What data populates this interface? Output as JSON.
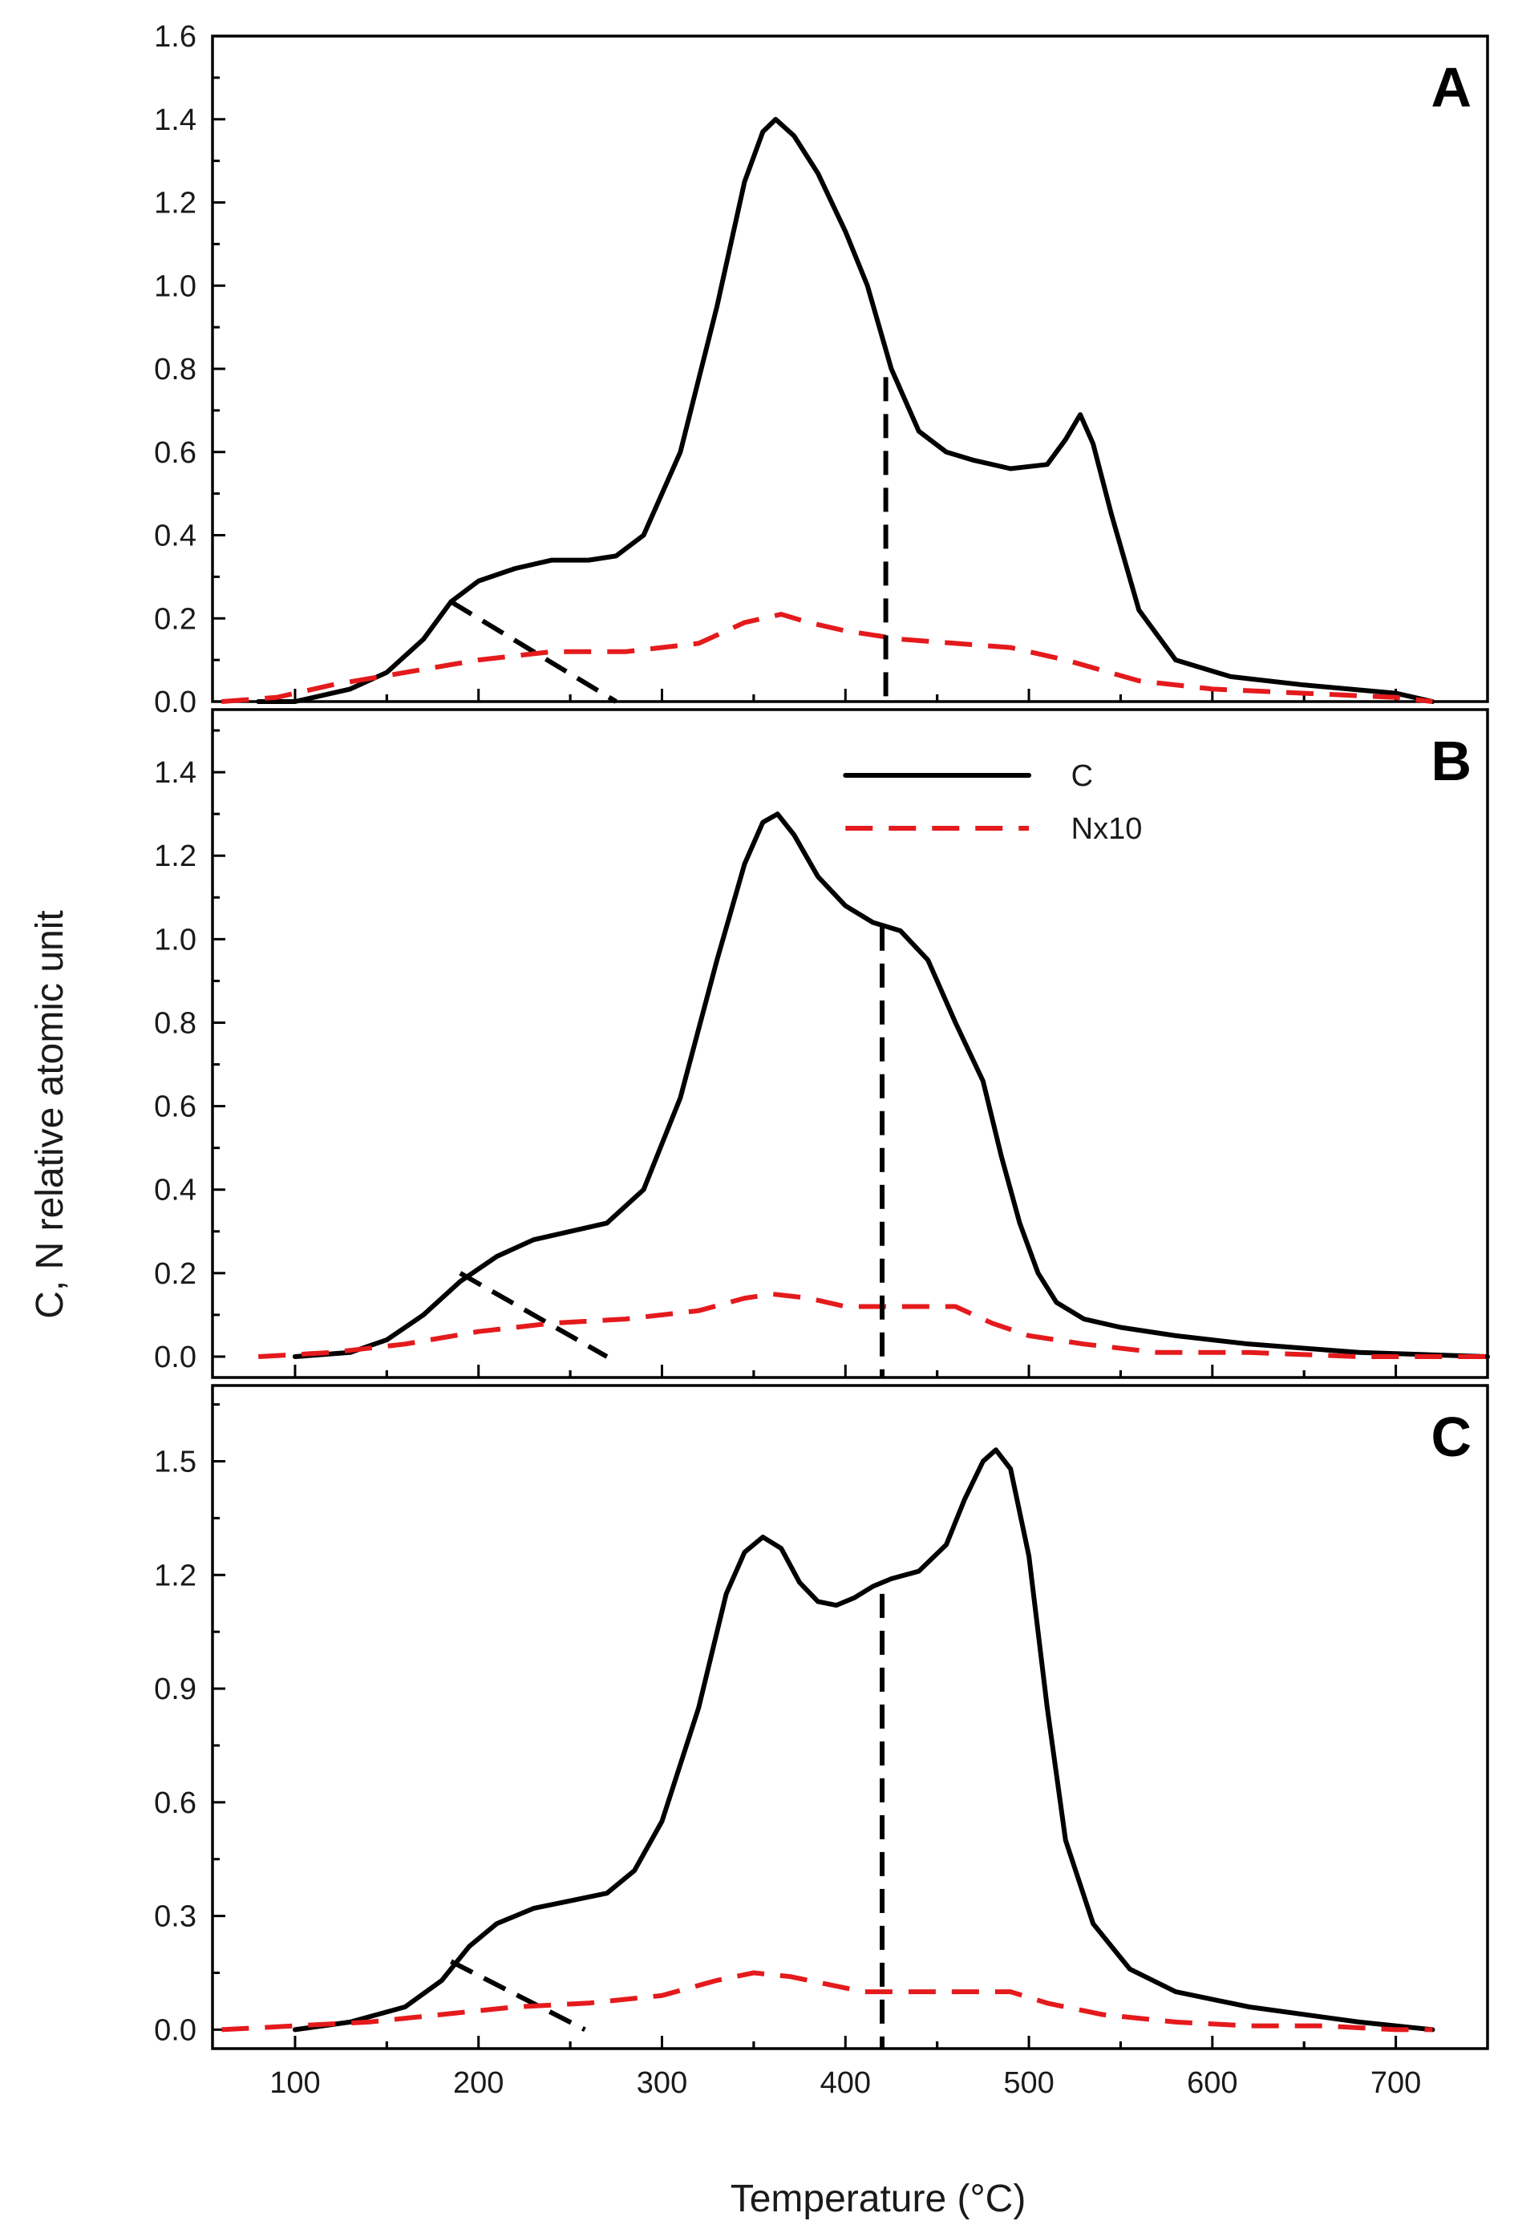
{
  "chart_data": {
    "type": "line",
    "xlabel": "Temperature (°C)",
    "ylabel": "C, N relative atomic unit",
    "xlim": [
      55,
      750
    ],
    "x_ticks": [
      100,
      200,
      300,
      400,
      500,
      600,
      700
    ],
    "legend": {
      "placement": "top-center of panel B",
      "entries": [
        {
          "name": "C",
          "style": "solid",
          "color": "#000000"
        },
        {
          "name": "Nx10",
          "style": "dashed",
          "color": "#e41a1c"
        }
      ]
    },
    "panels": [
      {
        "label": "A",
        "ylim": [
          0,
          1.6
        ],
        "y_ticks": [
          0.0,
          0.2,
          0.4,
          0.6,
          0.8,
          1.0,
          1.2,
          1.4,
          1.6
        ],
        "y_tick_labels": [
          "0.0",
          "0.2",
          "0.4",
          "0.6",
          "0.8",
          "1.0",
          "1.2",
          "1.4",
          "1.6"
        ],
        "marker_x": 422,
        "marker_top": 0.78,
        "baseline_segment": [
          [
            185,
            0.24
          ],
          [
            275,
            0.0
          ]
        ],
        "series": [
          {
            "name": "C",
            "x": [
              80,
              100,
              130,
              150,
              170,
              185,
              200,
              220,
              240,
              260,
              275,
              290,
              310,
              330,
              345,
              355,
              362,
              372,
              385,
              400,
              412,
              425,
              440,
              455,
              470,
              490,
              510,
              520,
              528,
              535,
              545,
              560,
              580,
              610,
              650,
              700,
              720
            ],
            "y": [
              0.0,
              0.0,
              0.03,
              0.07,
              0.15,
              0.24,
              0.29,
              0.32,
              0.34,
              0.34,
              0.35,
              0.4,
              0.6,
              0.95,
              1.25,
              1.37,
              1.4,
              1.36,
              1.27,
              1.13,
              1.0,
              0.8,
              0.65,
              0.6,
              0.58,
              0.56,
              0.57,
              0.63,
              0.69,
              0.62,
              0.45,
              0.22,
              0.1,
              0.06,
              0.04,
              0.02,
              0.0
            ]
          },
          {
            "name": "Nx10",
            "x": [
              60,
              90,
              120,
              160,
              200,
              240,
              280,
              320,
              345,
              365,
              380,
              400,
              430,
              460,
              490,
              520,
              560,
              600,
              650,
              700,
              720
            ],
            "y": [
              0.0,
              0.01,
              0.04,
              0.07,
              0.1,
              0.12,
              0.12,
              0.14,
              0.19,
              0.21,
              0.19,
              0.17,
              0.15,
              0.14,
              0.13,
              0.1,
              0.05,
              0.03,
              0.02,
              0.01,
              0.0
            ]
          }
        ]
      },
      {
        "label": "B",
        "ylim": [
          -0.05,
          1.55
        ],
        "y_ticks": [
          0.0,
          0.2,
          0.4,
          0.6,
          0.8,
          1.0,
          1.2,
          1.4
        ],
        "y_tick_labels": [
          "0.0",
          "0.2",
          "0.4",
          "0.6",
          "0.8",
          "1.0",
          "1.2",
          "1.4"
        ],
        "marker_x": 420,
        "marker_top": 1.03,
        "baseline_segment": [
          [
            190,
            0.2
          ],
          [
            270,
            0.0
          ]
        ],
        "series": [
          {
            "name": "C",
            "x": [
              100,
              130,
              150,
              170,
              190,
              210,
              230,
              250,
              270,
              290,
              310,
              330,
              345,
              355,
              363,
              372,
              385,
              400,
              415,
              430,
              445,
              460,
              475,
              485,
              495,
              505,
              515,
              530,
              550,
              580,
              620,
              680,
              750
            ],
            "y": [
              0.0,
              0.01,
              0.04,
              0.1,
              0.18,
              0.24,
              0.28,
              0.3,
              0.32,
              0.4,
              0.62,
              0.95,
              1.18,
              1.28,
              1.3,
              1.25,
              1.15,
              1.08,
              1.04,
              1.02,
              0.95,
              0.8,
              0.66,
              0.48,
              0.32,
              0.2,
              0.13,
              0.09,
              0.07,
              0.05,
              0.03,
              0.01,
              0.0
            ]
          },
          {
            "name": "Nx10",
            "x": [
              80,
              120,
              160,
              200,
              240,
              280,
              320,
              345,
              360,
              380,
              400,
              430,
              460,
              480,
              500,
              530,
              570,
              620,
              680,
              750
            ],
            "y": [
              0.0,
              0.01,
              0.03,
              0.06,
              0.08,
              0.09,
              0.11,
              0.14,
              0.15,
              0.14,
              0.12,
              0.12,
              0.12,
              0.08,
              0.05,
              0.03,
              0.01,
              0.01,
              0.0,
              0.0
            ]
          }
        ]
      },
      {
        "label": "C",
        "ylim": [
          -0.05,
          1.7
        ],
        "y_ticks": [
          0.0,
          0.3,
          0.6,
          0.9,
          1.2,
          1.5
        ],
        "y_tick_labels": [
          "0.0",
          "0.3",
          "0.6",
          "0.9",
          "1.2",
          "1.5"
        ],
        "marker_x": 420,
        "marker_top": 1.15,
        "baseline_segment": [
          [
            185,
            0.18
          ],
          [
            258,
            0.0
          ]
        ],
        "series": [
          {
            "name": "C",
            "x": [
              100,
              130,
              160,
              180,
              195,
              210,
              230,
              250,
              270,
              285,
              300,
              320,
              335,
              345,
              355,
              365,
              375,
              385,
              395,
              405,
              415,
              425,
              440,
              455,
              465,
              475,
              482,
              490,
              500,
              510,
              520,
              535,
              555,
              580,
              620,
              680,
              720
            ],
            "y": [
              0.0,
              0.02,
              0.06,
              0.13,
              0.22,
              0.28,
              0.32,
              0.34,
              0.36,
              0.42,
              0.55,
              0.85,
              1.15,
              1.26,
              1.3,
              1.27,
              1.18,
              1.13,
              1.12,
              1.14,
              1.17,
              1.19,
              1.21,
              1.28,
              1.4,
              1.5,
              1.53,
              1.48,
              1.25,
              0.85,
              0.5,
              0.28,
              0.16,
              0.1,
              0.06,
              0.02,
              0.0
            ]
          },
          {
            "name": "Nx10",
            "x": [
              60,
              100,
              140,
              180,
              220,
              260,
              300,
              330,
              350,
              370,
              390,
              410,
              440,
              470,
              490,
              510,
              540,
              580,
              620,
              660,
              700,
              720
            ],
            "y": [
              0.0,
              0.01,
              0.02,
              0.04,
              0.06,
              0.07,
              0.09,
              0.13,
              0.15,
              0.14,
              0.12,
              0.1,
              0.1,
              0.1,
              0.1,
              0.07,
              0.04,
              0.02,
              0.01,
              0.01,
              0.0,
              0.0
            ]
          }
        ]
      }
    ]
  }
}
